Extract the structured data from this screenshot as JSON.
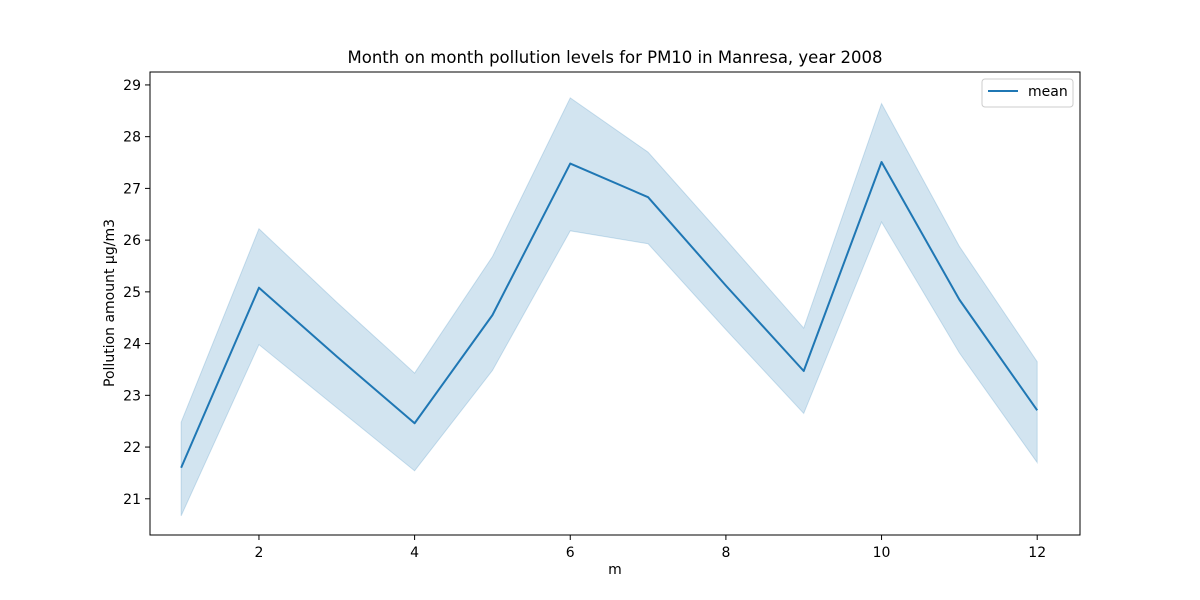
{
  "chart_data": {
    "type": "line",
    "title": "Month on month pollution levels for PM10 in Manresa, year 2008",
    "xlabel": "m",
    "ylabel": "Pollution amount µg/m3",
    "xlim": [
      0.6,
      12.55
    ],
    "ylim": [
      20.3,
      29.25
    ],
    "xticks": [
      2,
      4,
      6,
      8,
      10,
      12
    ],
    "yticks": [
      21,
      22,
      23,
      24,
      25,
      26,
      27,
      28,
      29
    ],
    "grid": false,
    "legend": "top-right",
    "colors": {
      "line": "#1f77b4",
      "band": "#1f77b4"
    },
    "x": [
      1,
      2,
      3,
      4,
      5,
      6,
      7,
      8,
      9,
      10,
      11,
      12
    ],
    "series": [
      {
        "name": "mean",
        "values": [
          21.6,
          25.08,
          23.75,
          22.46,
          24.55,
          27.48,
          26.83,
          25.12,
          23.47,
          27.51,
          24.85,
          22.71
        ],
        "lower": [
          20.67,
          23.98,
          22.76,
          21.54,
          23.48,
          26.18,
          25.93,
          24.27,
          22.65,
          26.35,
          23.82,
          21.7
        ],
        "upper": [
          22.48,
          26.22,
          24.8,
          23.43,
          25.68,
          28.75,
          27.7,
          26.01,
          24.3,
          28.64,
          25.88,
          23.65
        ]
      }
    ]
  }
}
